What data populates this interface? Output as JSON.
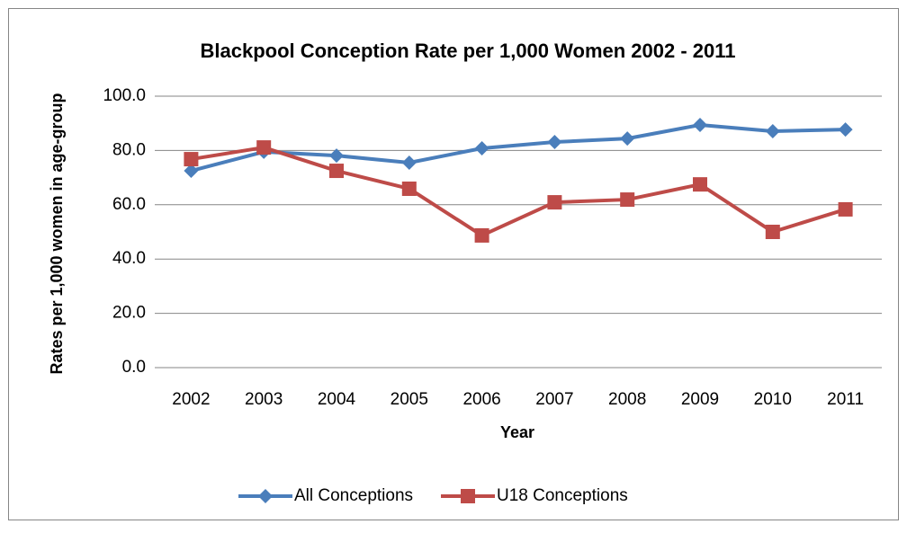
{
  "chart_data": {
    "type": "line",
    "title": "Blackpool Conception Rate per 1,000 Women 2002 - 2011",
    "x_label": "Year",
    "y_label": "Rates per 1,000 women in age-group",
    "categories": [
      "2002",
      "2003",
      "2004",
      "2005",
      "2006",
      "2007",
      "2008",
      "2009",
      "2010",
      "2011"
    ],
    "series": [
      {
        "name": "All Conceptions",
        "color": "#4a7ebb",
        "marker": "diamond",
        "values": [
          72.5,
          79.5,
          78.1,
          75.5,
          80.8,
          83.1,
          84.4,
          89.4,
          87.1,
          87.7
        ]
      },
      {
        "name": "U18 Conceptions",
        "color": "#be4b48",
        "marker": "square",
        "values": [
          76.8,
          81.1,
          72.5,
          65.9,
          48.7,
          60.9,
          61.9,
          67.5,
          50.0,
          58.3
        ]
      }
    ],
    "ylim": [
      0,
      100
    ],
    "yticks": [
      {
        "value": 0,
        "label": "0.0"
      },
      {
        "value": 20,
        "label": "20.0"
      },
      {
        "value": 40,
        "label": "40.0"
      },
      {
        "value": 60,
        "label": "60.0"
      },
      {
        "value": 80,
        "label": "80.0"
      },
      {
        "value": 100,
        "label": "100.0"
      }
    ],
    "grid": true,
    "legend": "bottom"
  }
}
